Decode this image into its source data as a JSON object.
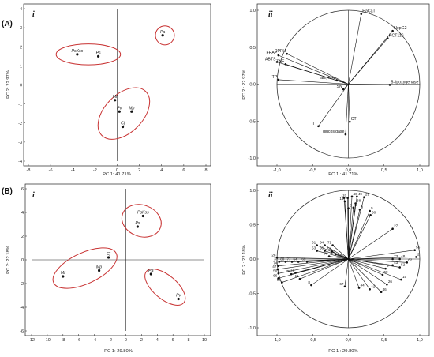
{
  "sections": [
    {
      "label": "(A)",
      "score_label": "i",
      "loading_label": "ii",
      "score_xlabel": "PC 1: 41.71%",
      "score_ylabel": "PC 2: 22.97%",
      "load_xlabel": "PC 1 : 41.71%",
      "load_ylabel": "PC 2 : 22.97%"
    },
    {
      "label": "(B)",
      "score_label": "i",
      "loading_label": "ii",
      "score_xlabel": "PC 1: 29.80%",
      "score_ylabel": "PC 2: 22.18%",
      "load_xlabel": "PC 1 : 29.80%",
      "load_ylabel": "PC 2 : 22.18%"
    }
  ],
  "colors": {
    "group_ellipse": "#c83232",
    "ink": "#111111",
    "circle": "#333333"
  },
  "chart_data": [
    {
      "panel": "A-i",
      "type": "scatter",
      "title": "",
      "xlabel": "PC 1: 41.71%",
      "ylabel": "PC 2: 22.97%",
      "xlim": [
        -8,
        8
      ],
      "ylim": [
        -4,
        4
      ],
      "xticks": [
        "-8",
        "-6",
        "-4",
        "-2",
        "0",
        "2",
        "4",
        "6",
        "8"
      ],
      "yticks": [
        "4",
        "3",
        "2",
        "1",
        "0",
        "-1",
        "-2",
        "-3",
        "-4"
      ],
      "points": [
        {
          "label": "PsKss",
          "x": -3.6,
          "y": 1.6
        },
        {
          "label": "Ps",
          "x": -1.7,
          "y": 1.5
        },
        {
          "label": "Pa",
          "x": 4.1,
          "y": 2.6
        },
        {
          "label": "Mf",
          "x": -0.2,
          "y": -0.8
        },
        {
          "label": "Pv",
          "x": 0.2,
          "y": -1.4
        },
        {
          "label": "Mp",
          "x": 1.3,
          "y": -1.4
        },
        {
          "label": "Cj",
          "x": 0.5,
          "y": -2.2
        }
      ],
      "groups": [
        {
          "cx": -2.6,
          "cy": 1.6,
          "rx": 2.9,
          "ry": 0.55,
          "angle": 0
        },
        {
          "cx": 4.3,
          "cy": 2.6,
          "rx": 0.85,
          "ry": 0.5,
          "angle": 0
        },
        {
          "cx": 0.6,
          "cy": -1.5,
          "rx": 2.8,
          "ry": 1.0,
          "angle": -45
        }
      ],
      "grid": false
    },
    {
      "panel": "A-ii",
      "type": "loading",
      "xlabel": "PC 1 : 41.71%",
      "ylabel": "PC 2 : 22.97%",
      "xlim": [
        -1,
        1
      ],
      "ylim": [
        -1,
        1
      ],
      "xticks": [
        "-1,0",
        "-0,5",
        "0,0",
        "0,5",
        "1,0"
      ],
      "yticks": [
        "1,0",
        "0,5",
        "0,0",
        "-0,5",
        "-1,0"
      ],
      "vectors": [
        {
          "label": "HaCaT",
          "x": 0.18,
          "y": 0.95
        },
        {
          "label": "HepG2",
          "x": 0.62,
          "y": 0.72
        },
        {
          "label": "HCT116",
          "x": 0.55,
          "y": 0.62
        },
        {
          "label": "DPPH",
          "x": -0.86,
          "y": 0.41
        },
        {
          "label": "FRAP",
          "x": -0.98,
          "y": 0.39
        },
        {
          "label": "ABTS",
          "x": -1.0,
          "y": 0.3
        },
        {
          "label": "TNF",
          "x": -0.88,
          "y": 0.27
        },
        {
          "label": "TP",
          "x": -0.98,
          "y": 0.06
        },
        {
          "label": "amylase",
          "x": -0.16,
          "y": 0.05
        },
        {
          "label": "5-lipoxygenase",
          "x": 0.58,
          "y": -0.01
        },
        {
          "label": "SN",
          "x": -0.07,
          "y": -0.07
        },
        {
          "label": "TT",
          "x": -0.42,
          "y": -0.57
        },
        {
          "label": "CT",
          "x": 0.02,
          "y": -0.51
        },
        {
          "label": "glucosidase",
          "x": -0.04,
          "y": -0.68
        }
      ]
    },
    {
      "panel": "B-i",
      "type": "scatter",
      "title": "",
      "xlabel": "PC 1: 29.80%",
      "ylabel": "PC 2: 22.18%",
      "xlim": [
        -12,
        10
      ],
      "ylim": [
        -6,
        6
      ],
      "xticks": [
        "-12",
        "-10",
        "-8",
        "-6",
        "-4",
        "-2",
        "0",
        "2",
        "4",
        "6",
        "8",
        "10"
      ],
      "yticks": [
        "6",
        "4",
        "2",
        "0",
        "-2",
        "-4",
        "-6"
      ],
      "points": [
        {
          "label": "PsKss",
          "x": 2.2,
          "y": 3.7
        },
        {
          "label": "Ps",
          "x": 1.5,
          "y": 2.8
        },
        {
          "label": "Cj",
          "x": -2.2,
          "y": 0.2
        },
        {
          "label": "Mp",
          "x": -3.4,
          "y": -0.9
        },
        {
          "label": "Mf",
          "x": -8.0,
          "y": -1.4
        },
        {
          "label": "Pa",
          "x": 3.2,
          "y": -1.2
        },
        {
          "label": "Pv",
          "x": 6.7,
          "y": -3.3
        }
      ],
      "groups": [
        {
          "cx": 2.0,
          "cy": 3.3,
          "rx": 2.0,
          "ry": 1.7,
          "angle": -70
        },
        {
          "cx": -5.2,
          "cy": -0.7,
          "rx": 4.4,
          "ry": 1.3,
          "angle": -25
        },
        {
          "cx": 5.0,
          "cy": -2.3,
          "rx": 3.1,
          "ry": 1.0,
          "angle": 40
        }
      ],
      "grid": false
    },
    {
      "panel": "B-ii",
      "type": "loading",
      "xlabel": "PC 1 : 29.80%",
      "ylabel": "PC 2 : 22.18%",
      "xlim": [
        -1,
        1
      ],
      "ylim": [
        -1,
        1
      ],
      "xticks": [
        "-1,0",
        "-0,5",
        "0,0",
        "0,5",
        "1,0"
      ],
      "yticks": [
        "1,0",
        "0,5",
        "0,0",
        "-0,5",
        "-1,0"
      ],
      "vectors": [
        {
          "label": "7",
          "x": -0.06,
          "y": 0.89
        },
        {
          "label": "16",
          "x": -0.01,
          "y": 0.89
        },
        {
          "label": "13",
          "x": -0.05,
          "y": 0.84
        },
        {
          "label": "40",
          "x": 0.05,
          "y": 0.91
        },
        {
          "label": "49",
          "x": 0.12,
          "y": 0.91
        },
        {
          "label": "29",
          "x": 0.22,
          "y": 0.9
        },
        {
          "label": "38",
          "x": 0.1,
          "y": 0.81
        },
        {
          "label": "4",
          "x": 0.07,
          "y": 0.75
        },
        {
          "label": "3",
          "x": 0.0,
          "y": 0.74
        },
        {
          "label": "8",
          "x": 0.16,
          "y": 0.72
        },
        {
          "label": "5",
          "x": 0.3,
          "y": 0.7
        },
        {
          "label": "30",
          "x": 0.31,
          "y": 0.64
        },
        {
          "label": "27",
          "x": 0.62,
          "y": 0.44
        },
        {
          "label": "55",
          "x": 0.93,
          "y": 0.13
        },
        {
          "label": "2",
          "x": 0.95,
          "y": 0.03
        },
        {
          "label": "71",
          "x": -0.22,
          "y": 0.2
        },
        {
          "label": "61",
          "x": -0.44,
          "y": 0.2
        },
        {
          "label": "54",
          "x": -0.33,
          "y": 0.2
        },
        {
          "label": "53",
          "x": -0.44,
          "y": 0.12
        },
        {
          "label": "56",
          "x": -0.33,
          "y": 0.12
        },
        {
          "label": "34",
          "x": -0.23,
          "y": 0.11
        },
        {
          "label": "70",
          "x": -0.27,
          "y": 0.04
        },
        {
          "label": "35",
          "x": -0.18,
          "y": 0.07
        },
        {
          "label": "28",
          "x": -1.0,
          "y": 0.02
        },
        {
          "label": "37",
          "x": -0.97,
          "y": -0.04
        },
        {
          "label": "80",
          "x": -0.88,
          "y": -0.04
        },
        {
          "label": "77",
          "x": -0.79,
          "y": -0.04
        },
        {
          "label": "64",
          "x": -0.7,
          "y": -0.04
        },
        {
          "label": "69",
          "x": -0.58,
          "y": -0.04
        },
        {
          "label": "74",
          "x": -0.98,
          "y": -0.1
        },
        {
          "label": "47",
          "x": -0.99,
          "y": -0.15
        },
        {
          "label": "50",
          "x": -0.98,
          "y": -0.21
        },
        {
          "label": "66",
          "x": -0.98,
          "y": -0.28
        },
        {
          "label": "58",
          "x": -0.93,
          "y": -0.34
        },
        {
          "label": "11",
          "x": -0.68,
          "y": -0.29
        },
        {
          "label": "75",
          "x": -0.8,
          "y": -0.22
        },
        {
          "label": "21",
          "x": -0.74,
          "y": -0.2
        },
        {
          "label": "8",
          "x": -0.52,
          "y": -0.38
        },
        {
          "label": "67",
          "x": -0.05,
          "y": -0.4
        },
        {
          "label": "44",
          "x": 0.15,
          "y": -0.42
        },
        {
          "label": "41",
          "x": 0.3,
          "y": -0.44
        },
        {
          "label": "46",
          "x": 0.46,
          "y": -0.48
        },
        {
          "label": "26",
          "x": 0.54,
          "y": -0.37
        },
        {
          "label": "59",
          "x": 0.48,
          "y": -0.23
        },
        {
          "label": "73",
          "x": 0.62,
          "y": 0.0
        },
        {
          "label": "48",
          "x": 0.72,
          "y": 0.0
        },
        {
          "label": "43",
          "x": 0.62,
          "y": -0.09
        },
        {
          "label": "52",
          "x": 0.72,
          "y": -0.12
        },
        {
          "label": "15",
          "x": 0.74,
          "y": -0.3
        },
        {
          "label": "62",
          "x": 0.82,
          "y": -0.05
        },
        {
          "label": "9",
          "x": 0.52,
          "y": -0.14
        }
      ]
    }
  ]
}
